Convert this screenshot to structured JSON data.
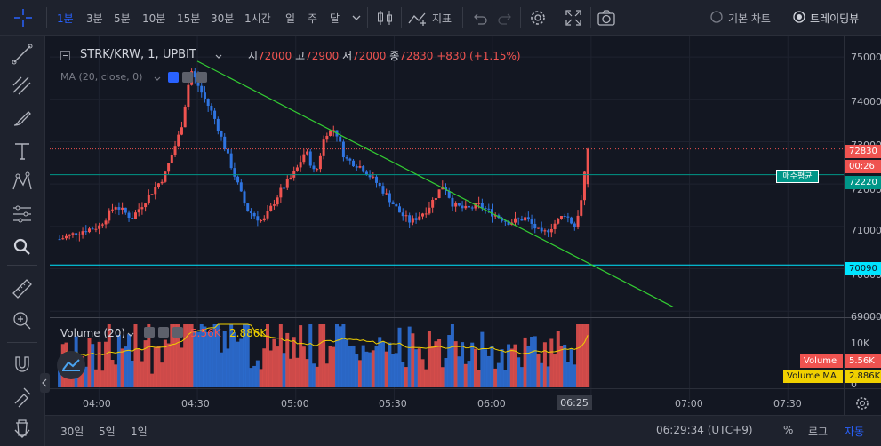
{
  "toolbar": {
    "timeframes": [
      "1분",
      "3분",
      "5분",
      "10분",
      "15분",
      "30분",
      "1시간",
      "일",
      "주",
      "달"
    ],
    "active_timeframe": "1분",
    "indicators_label": "지표",
    "basic_chart_label": "기본 차트",
    "trading_view_label": "트레이딩뷰"
  },
  "legend": {
    "symbol": "STRK/KRW, 1, UPBIT",
    "open_label": "시",
    "open": "72000",
    "high_label": "고",
    "high": "72900",
    "low_label": "저",
    "low": "72000",
    "close_label": "종",
    "close": "72830",
    "change": "+830 (+1.15%)",
    "ma": "MA (20, close, 0)"
  },
  "volume_legend": {
    "title": "Volume (20)",
    "volume_value": "5.56K",
    "ma_value": "2.886K"
  },
  "price_axis": {
    "ticks": [
      "75000",
      "74000",
      "73000",
      "72000",
      "71000",
      "70000",
      "69000"
    ],
    "current_price": "72830",
    "countdown": "00:26",
    "avg_line_price": "72220",
    "avg_line_label": "매수평균",
    "support_price": "70090"
  },
  "volume_axis": {
    "ticks": [
      "10K",
      "5K",
      "0"
    ],
    "volume_label": "Volume",
    "volume_value": "5.56K",
    "ma_label": "Volume MA",
    "ma_value": "2.886K"
  },
  "time_axis": {
    "ticks": [
      "04:00",
      "04:30",
      "05:00",
      "05:30",
      "06:00",
      "06:25",
      "07:00",
      "07:30"
    ]
  },
  "bottom": {
    "ranges": [
      "30일",
      "5일",
      "1일"
    ],
    "clock": "06:29:34 (UTC+9)",
    "percent": "%",
    "log": "로그",
    "auto": "자동"
  },
  "colors": {
    "up": "#ef5350",
    "down": "#2f74e0",
    "trendline": "#33cc33",
    "cyan": "#00e5ff",
    "avg": "#009688",
    "ma_line": "#f0d000"
  },
  "chart_data": {
    "type": "candlestick",
    "symbol": "STRK/KRW",
    "interval": "1m",
    "x_range": [
      "03:45",
      "07:47"
    ],
    "y_range": [
      68900,
      75400
    ],
    "last": {
      "open": 72000,
      "high": 72900,
      "low": 72000,
      "close": 72830
    },
    "horizontal_lines": [
      72220,
      70090,
      72830
    ],
    "trendline": {
      "from": [
        "04:30",
        74900
      ],
      "to": [
        "06:55",
        69100
      ]
    },
    "close_path": [
      [
        "03:48",
        70700
      ],
      [
        "03:55",
        70900
      ],
      [
        "04:00",
        71000
      ],
      [
        "04:05",
        71500
      ],
      [
        "04:10",
        71200
      ],
      [
        "04:15",
        71700
      ],
      [
        "04:20",
        72200
      ],
      [
        "04:25",
        73300
      ],
      [
        "04:28",
        74700
      ],
      [
        "04:31",
        74200
      ],
      [
        "04:35",
        73600
      ],
      [
        "04:40",
        72500
      ],
      [
        "04:45",
        71400
      ],
      [
        "04:50",
        71100
      ],
      [
        "04:55",
        71800
      ],
      [
        "05:00",
        72300
      ],
      [
        "05:03",
        72800
      ],
      [
        "05:06",
        72200
      ],
      [
        "05:09",
        73200
      ],
      [
        "05:12",
        73300
      ],
      [
        "05:15",
        72600
      ],
      [
        "05:20",
        72400
      ],
      [
        "05:25",
        72000
      ],
      [
        "05:28",
        71700
      ],
      [
        "05:32",
        71300
      ],
      [
        "05:35",
        71100
      ],
      [
        "05:40",
        71400
      ],
      [
        "05:45",
        72000
      ],
      [
        "05:48",
        71500
      ],
      [
        "05:52",
        71400
      ],
      [
        "05:56",
        71500
      ],
      [
        "06:00",
        71300
      ],
      [
        "06:05",
        71100
      ],
      [
        "06:10",
        71200
      ],
      [
        "06:15",
        70800
      ],
      [
        "06:18",
        71000
      ],
      [
        "06:22",
        71300
      ],
      [
        "06:25",
        71000
      ],
      [
        "06:27",
        71600
      ],
      [
        "06:29",
        72830
      ]
    ]
  }
}
